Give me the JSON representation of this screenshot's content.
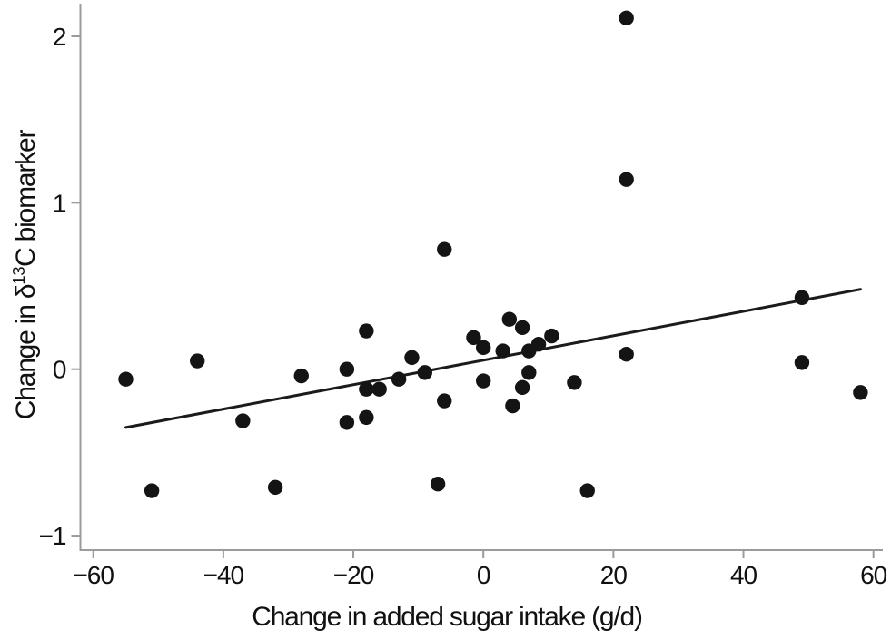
{
  "figure": {
    "background": "#ffffff"
  },
  "chart_data": {
    "type": "scatter",
    "title": "",
    "xlabel": "Change in added sugar intake (g/d)",
    "ylabel": "Change in δ13C biomarker",
    "ylabel_parts": {
      "prefix": "Change in δ",
      "superscript": "13",
      "suffix": "C biomarker"
    },
    "xlim": [
      -60,
      60
    ],
    "ylim": [
      -1.05,
      2.2
    ],
    "grid": false,
    "legend": null,
    "xticks": [
      {
        "value": -60,
        "label": "−60"
      },
      {
        "value": -40,
        "label": "−40"
      },
      {
        "value": -20,
        "label": "−20"
      },
      {
        "value": 0,
        "label": "0"
      },
      {
        "value": 20,
        "label": "20"
      },
      {
        "value": 40,
        "label": "40"
      },
      {
        "value": 60,
        "label": "60"
      }
    ],
    "yticks": [
      {
        "value": -1,
        "label": "−1"
      },
      {
        "value": 0,
        "label": "0"
      },
      {
        "value": 1,
        "label": "1"
      },
      {
        "value": 2,
        "label": "2"
      }
    ],
    "points": [
      [
        -55,
        -0.06
      ],
      [
        -51,
        -0.73
      ],
      [
        -44,
        0.05
      ],
      [
        -37,
        -0.31
      ],
      [
        -32,
        -0.71
      ],
      [
        -28,
        -0.04
      ],
      [
        -21,
        0.0
      ],
      [
        -21,
        -0.32
      ],
      [
        -18,
        0.23
      ],
      [
        -18,
        -0.12
      ],
      [
        -18,
        -0.29
      ],
      [
        -16,
        -0.12
      ],
      [
        -13,
        -0.06
      ],
      [
        -11,
        0.07
      ],
      [
        -9,
        -0.02
      ],
      [
        -7,
        -0.69
      ],
      [
        -6,
        -0.19
      ],
      [
        -6,
        0.72
      ],
      [
        -1.5,
        0.19
      ],
      [
        0,
        0.13
      ],
      [
        0,
        -0.07
      ],
      [
        3,
        0.11
      ],
      [
        4,
        0.3
      ],
      [
        4.5,
        -0.22
      ],
      [
        6,
        0.25
      ],
      [
        6,
        -0.11
      ],
      [
        7,
        0.11
      ],
      [
        7,
        -0.02
      ],
      [
        8.5,
        0.15
      ],
      [
        10.5,
        0.2
      ],
      [
        14,
        -0.08
      ],
      [
        16,
        -0.73
      ],
      [
        22,
        2.11
      ],
      [
        22,
        1.14
      ],
      [
        22,
        0.09
      ],
      [
        49,
        0.43
      ],
      [
        49,
        0.04
      ],
      [
        58,
        -0.14
      ]
    ],
    "trendline": {
      "x1": -55,
      "y1": -0.35,
      "x2": 58,
      "y2": 0.48
    },
    "colors": {
      "point": "#141414",
      "trend": "#1b1b1b",
      "axis": "#9b9b9b",
      "text": "#111111"
    }
  }
}
